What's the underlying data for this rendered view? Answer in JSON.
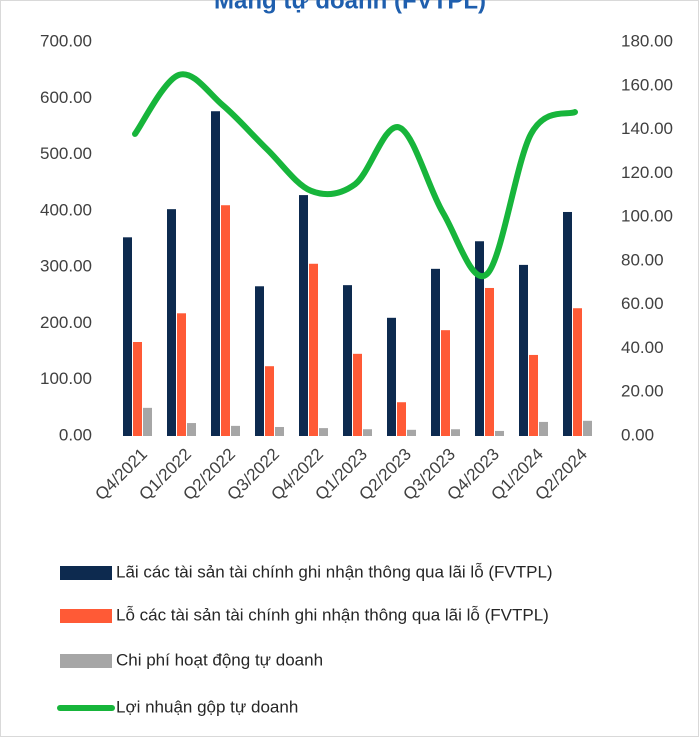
{
  "chart_data": {
    "type": "bar",
    "title": "Mảng tự doanh (FVTPL)",
    "categories": [
      "Q4/2021",
      "Q1/2022",
      "Q2/2022",
      "Q3/2022",
      "Q4/2022",
      "Q1/2023",
      "Q2/2023",
      "Q3/2023",
      "Q4/2023",
      "Q1/2024",
      "Q2/2024"
    ],
    "series": [
      {
        "name": "Lãi các tài sản tài chính ghi nhận thông qua lãi lỗ (FVTPL)",
        "color": "#0d2a4f",
        "type": "bar",
        "values": [
          353,
          403,
          577,
          266,
          428,
          268,
          210,
          297,
          346,
          304,
          398
        ]
      },
      {
        "name": "Lỗ các tài sản tài chính ghi nhận thông qua lãi lỗ (FVTPL)",
        "color": "#ff5a36",
        "type": "bar",
        "values": [
          167,
          218,
          410,
          124,
          306,
          146,
          60,
          188,
          263,
          144,
          227
        ]
      },
      {
        "name": "Chi phí hoạt động tự doanh",
        "color": "#a6a6a6",
        "type": "bar",
        "values": [
          50,
          23,
          18,
          16,
          14,
          12,
          11,
          12,
          9,
          25,
          27
        ]
      },
      {
        "name": "Lợi nhuận gộp tự doanh",
        "color": "#17b53b",
        "type": "line",
        "axis": "y2",
        "values": [
          138,
          165,
          151,
          131,
          112,
          115,
          141,
          102,
          74,
          138,
          148
        ]
      }
    ],
    "ylim": [
      0,
      700
    ],
    "yticks": [
      {
        "value": 0,
        "label": "0.00"
      },
      {
        "value": 100,
        "label": "100.00"
      },
      {
        "value": 200,
        "label": "200.00"
      },
      {
        "value": 300,
        "label": "300.00"
      },
      {
        "value": 400,
        "label": "400.00"
      },
      {
        "value": 500,
        "label": "500.00"
      },
      {
        "value": 600,
        "label": "600.00"
      },
      {
        "value": 700,
        "label": "700.00"
      }
    ],
    "y2lim": [
      0,
      180
    ],
    "y2ticks": [
      {
        "value": 0,
        "label": "0.00"
      },
      {
        "value": 20,
        "label": "20.00"
      },
      {
        "value": 40,
        "label": "40.00"
      },
      {
        "value": 60,
        "label": "60.00"
      },
      {
        "value": 80,
        "label": "80.00"
      },
      {
        "value": 100,
        "label": "100.00"
      },
      {
        "value": 120,
        "label": "120.00"
      },
      {
        "value": 140,
        "label": "140.00"
      },
      {
        "value": 160,
        "label": "160.00"
      },
      {
        "value": 180,
        "label": "180.00"
      }
    ],
    "grid": false
  }
}
